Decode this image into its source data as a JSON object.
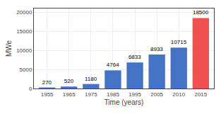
{
  "chart_data": {
    "type": "bar",
    "categories": [
      "1955",
      "1965",
      "1975",
      "1985",
      "1995",
      "2005",
      "2010",
      "2015"
    ],
    "values": [
      270,
      520,
      1180,
      4764,
      6833,
      8933,
      10715,
      18500
    ],
    "colors": [
      "#4472C4",
      "#4472C4",
      "#4472C4",
      "#4472C4",
      "#4472C4",
      "#4472C4",
      "#4472C4",
      "#F05050"
    ],
    "xlabel": "Time (years)",
    "ylabel": "MWe",
    "ylim": [
      0,
      21000
    ],
    "yticks": [
      0,
      5000,
      10000,
      15000,
      20000
    ],
    "grid": true,
    "data_labels": true
  }
}
